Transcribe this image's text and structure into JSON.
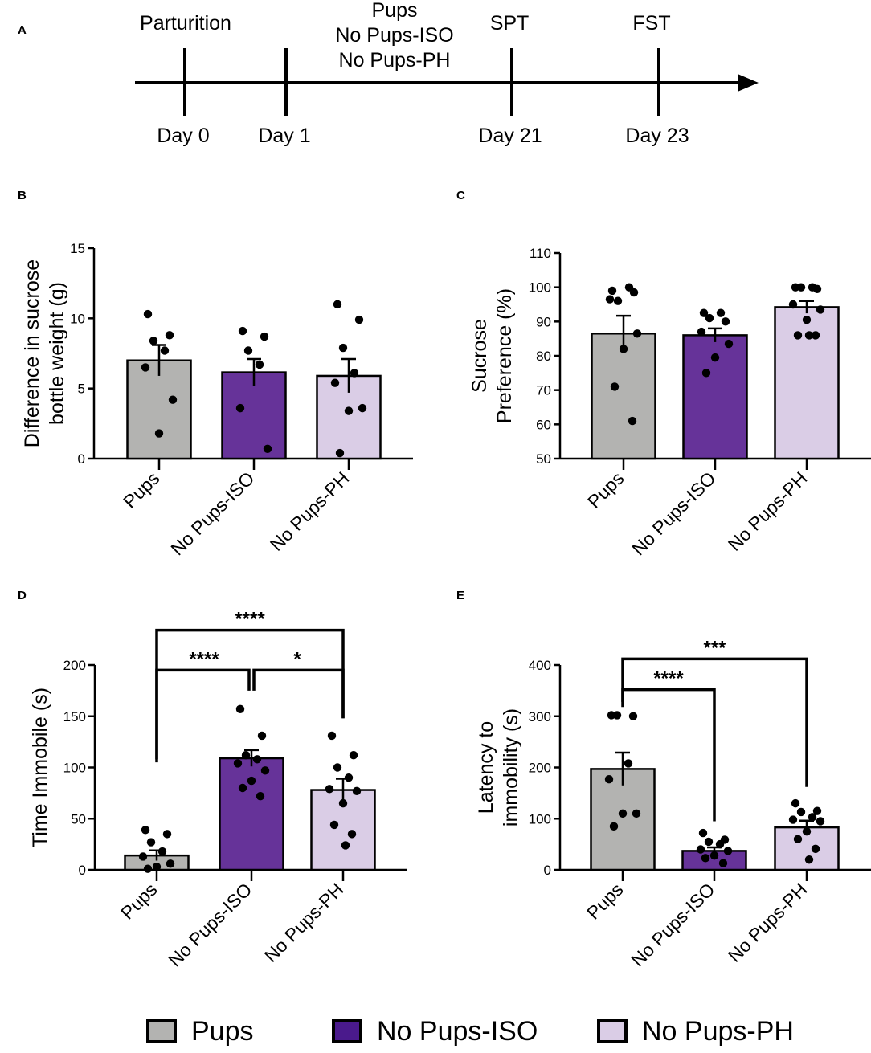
{
  "colors": {
    "pups": "#b3b3b1",
    "iso": "#663399",
    "ph": "#dacde6",
    "ink": "#000000"
  },
  "timeline": {
    "panel_label": "A",
    "events": [
      {
        "top": [
          "Parturition"
        ],
        "bottom": "Day 0"
      },
      {
        "top": [],
        "bottom": "Day 1"
      },
      {
        "top": [
          "SPT"
        ],
        "bottom": "Day 21"
      },
      {
        "top": [
          "FST"
        ],
        "bottom": "Day 23"
      }
    ],
    "group_labels": [
      "Pups",
      "No Pups-ISO",
      "No Pups-PH"
    ]
  },
  "chart_data": [
    {
      "id": "B",
      "type": "bar",
      "panel_label": "B",
      "ylabel": [
        "Difference in sucrose",
        "bottle weight (g)"
      ],
      "ylim": [
        0,
        15
      ],
      "yticks": [
        0,
        5,
        10,
        15
      ],
      "categories": [
        "Pups",
        "No Pups-ISO",
        "No Pups-PH"
      ],
      "values": [
        7.0,
        6.15,
        5.9
      ],
      "sem": [
        1.1,
        0.95,
        1.2
      ],
      "points": [
        [
          10.3,
          8.8,
          8.4,
          7.7,
          6.5,
          4.2,
          1.8
        ],
        [
          9.1,
          8.7,
          7.7,
          6.7,
          3.6,
          0.7
        ],
        [
          11.0,
          9.9,
          7.9,
          6.1,
          5.4,
          3.6,
          3.4,
          0.4
        ]
      ],
      "brackets": []
    },
    {
      "id": "C",
      "type": "bar",
      "panel_label": "C",
      "ylabel": [
        "Sucrose",
        "Preference (%)"
      ],
      "ylim": [
        50,
        110
      ],
      "yticks": [
        50,
        60,
        70,
        80,
        90,
        100,
        110
      ],
      "categories": [
        "Pups",
        "No Pups-ISO",
        "No Pups-PH"
      ],
      "values": [
        86.5,
        86.0,
        94.2
      ],
      "sem": [
        5.2,
        2.0,
        1.8
      ],
      "points": [
        [
          99,
          98.5,
          96,
          100,
          96.5,
          86.5,
          82,
          71,
          61
        ],
        [
          92.5,
          90,
          91,
          92.5,
          87,
          83.5,
          79.5,
          75
        ],
        [
          100,
          99.5,
          100,
          100,
          95,
          93.5,
          90.5,
          86,
          86,
          86
        ]
      ],
      "brackets": []
    },
    {
      "id": "D",
      "type": "bar",
      "panel_label": "D",
      "ylabel": [
        "Time Immobile (s)"
      ],
      "ylim": [
        0,
        200
      ],
      "yticks": [
        0,
        50,
        100,
        150,
        200
      ],
      "categories": [
        "Pups",
        "No Pups-ISO",
        "No Pups-PH"
      ],
      "values": [
        14,
        109,
        78
      ],
      "sem": [
        5,
        8,
        11
      ],
      "points": [
        [
          39,
          35,
          27,
          18,
          13,
          6,
          3,
          1
        ],
        [
          157,
          131,
          112,
          108,
          104,
          97,
          87,
          80,
          72
        ],
        [
          131,
          112,
          100,
          90,
          79,
          77,
          65,
          44,
          35,
          24
        ]
      ],
      "brackets": [
        {
          "from": 1,
          "to": 0,
          "text": "****",
          "y": 195,
          "split": true
        },
        {
          "from": 0,
          "to": 2,
          "text": "****",
          "y": 234,
          "split": false
        },
        {
          "from": 1,
          "to": 2,
          "text": "*",
          "y": 195,
          "split": true
        }
      ]
    },
    {
      "id": "E",
      "type": "bar",
      "panel_label": "E",
      "ylabel": [
        "Latency to",
        "immobility (s)"
      ],
      "ylim": [
        0,
        400
      ],
      "yticks": [
        0,
        100,
        200,
        300,
        400
      ],
      "categories": [
        "Pups",
        "No Pups-ISO",
        "No Pups-PH"
      ],
      "values": [
        197,
        37,
        83
      ],
      "sem": [
        32,
        7,
        13
      ],
      "points": [
        [
          302,
          300,
          302,
          208,
          177,
          110,
          110,
          85
        ],
        [
          72,
          59,
          55,
          50,
          40,
          37,
          28,
          23,
          13
        ],
        [
          130,
          115,
          113,
          103,
          98,
          95,
          75,
          60,
          41,
          20
        ]
      ],
      "brackets": [
        {
          "from": 0,
          "to": 1,
          "text": "****",
          "y": 352,
          "split": false
        },
        {
          "from": 0,
          "to": 2,
          "text": "***",
          "y": 412,
          "split": false
        }
      ]
    }
  ],
  "legend": [
    {
      "label": "Pups",
      "color": "#b3b3b1"
    },
    {
      "label": "No Pups-ISO",
      "color": "#4a1a8c"
    },
    {
      "label": "No Pups-PH",
      "color": "#dacde6"
    }
  ]
}
